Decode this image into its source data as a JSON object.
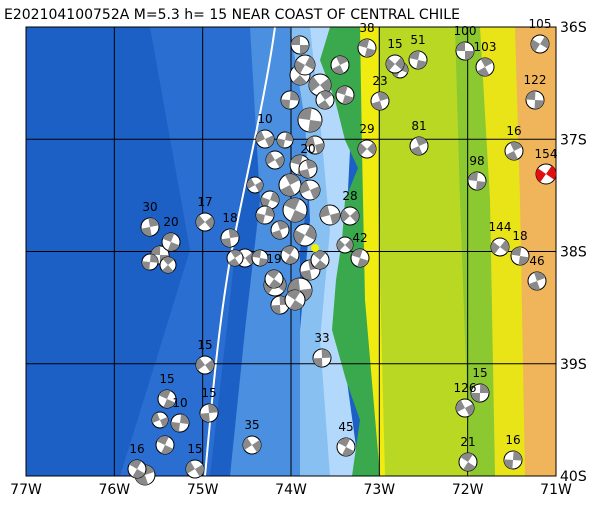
{
  "header": {
    "title": "E202104100752A M=5.3 h= 15 NEAR COAST OF CENTRAL CHILE"
  },
  "axes": {
    "longitude_labels": [
      "77W",
      "76W",
      "75W",
      "74W",
      "73W",
      "72W",
      "71W"
    ],
    "latitude_labels": [
      "36S",
      "37S",
      "38S",
      "39S",
      "40S"
    ]
  },
  "events": [
    100,
    103,
    105,
    122,
    16,
    154,
    98,
    81,
    144,
    18,
    46,
    15,
    51,
    23,
    29,
    38,
    20,
    28,
    42,
    30,
    17,
    20,
    18,
    15,
    15,
    15,
    35,
    45,
    33,
    15,
    16,
    15,
    126,
    21,
    16,
    10,
    19,
    10
  ]
}
